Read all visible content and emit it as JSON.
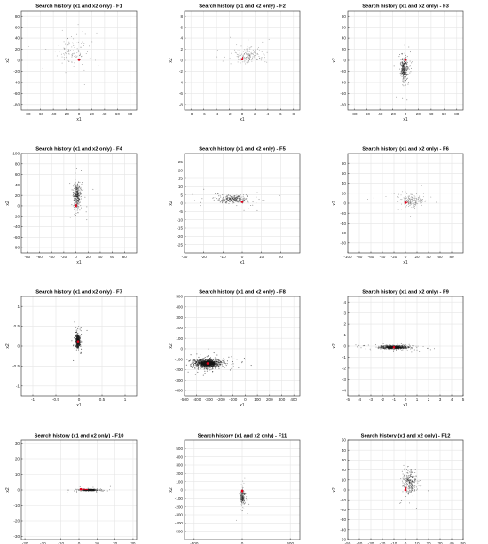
{
  "chart_data": [
    {
      "type": "scatter",
      "title": "Search history (x1 and x2 only) - F1",
      "xlabel": "x1",
      "ylabel": "x2",
      "xlim": [
        -90,
        90
      ],
      "ylim": [
        -90,
        90
      ],
      "xticks": [
        -80,
        -60,
        -40,
        -20,
        0,
        20,
        40,
        60,
        80
      ],
      "yticks": [
        -80,
        -60,
        -40,
        -20,
        0,
        20,
        40,
        60,
        80
      ],
      "grid": true,
      "pattern": "sparse",
      "cluster": {
        "center": [
          -12,
          16
        ],
        "spread": [
          14,
          14
        ],
        "count": 120
      },
      "best": [
        0,
        1
      ],
      "best_trail": [
        [
          -2,
          2
        ],
        [
          0,
          1
        ]
      ]
    },
    {
      "type": "scatter",
      "title": "Search history (x1 and x2 only) - F2",
      "xlabel": "x1",
      "ylabel": "x2",
      "xlim": [
        -9,
        9
      ],
      "ylim": [
        -9,
        9
      ],
      "xticks": [
        -8,
        -6,
        -4,
        -2,
        0,
        2,
        4,
        6,
        8
      ],
      "yticks": [
        -8,
        -6,
        -4,
        -2,
        0,
        2,
        4,
        6,
        8
      ],
      "grid": true,
      "pattern": "sparse",
      "cluster": {
        "center": [
          0.9,
          0.9
        ],
        "spread": [
          1.0,
          0.6
        ],
        "count": 160
      },
      "best": [
        0,
        0.2
      ],
      "best_trail": [
        [
          0.1,
          0.6
        ],
        [
          0,
          0.2
        ]
      ]
    },
    {
      "type": "scatter",
      "title": "Search history (x1 and x2 only) - F3",
      "xlabel": "x1",
      "ylabel": "x2",
      "xlim": [
        -90,
        90
      ],
      "ylim": [
        -90,
        90
      ],
      "xticks": [
        -80,
        -60,
        -40,
        -20,
        0,
        20,
        40,
        60,
        80
      ],
      "yticks": [
        -80,
        -60,
        -40,
        -20,
        0,
        20,
        40,
        60,
        80
      ],
      "grid": true,
      "pattern": "dense",
      "cluster": {
        "center": [
          -2,
          -16
        ],
        "spread": [
          2.5,
          10
        ],
        "count": 320
      },
      "best": [
        0,
        1
      ],
      "best_trail": [
        [
          -1,
          -5
        ],
        [
          0,
          1
        ]
      ]
    },
    {
      "type": "scatter",
      "title": "Search history (x1 and x2 only) - F4",
      "xlabel": "x1",
      "ylabel": "x2",
      "xlim": [
        -90,
        100
      ],
      "ylim": [
        -90,
        100
      ],
      "xticks": [
        -80,
        -60,
        -40,
        -20,
        0,
        20,
        40,
        60,
        80
      ],
      "yticks": [
        -80,
        -60,
        -40,
        -20,
        0,
        20,
        40,
        60,
        80,
        100
      ],
      "grid": true,
      "pattern": "dense",
      "cluster": {
        "center": [
          2,
          20
        ],
        "spread": [
          3,
          12
        ],
        "count": 300
      },
      "best": [
        0,
        0
      ],
      "best_trail": [
        [
          1,
          4
        ],
        [
          0,
          0
        ]
      ]
    },
    {
      "type": "scatter",
      "title": "Search history (x1 and x2 only) - F5",
      "xlabel": "x1",
      "ylabel": "x2",
      "xlim": [
        -30,
        30
      ],
      "ylim": [
        -30,
        30
      ],
      "xticks": [
        -30,
        -20,
        -10,
        0,
        10,
        20
      ],
      "yticks": [
        -25,
        -20,
        -15,
        -10,
        -5,
        0,
        5,
        10,
        15,
        20,
        25
      ],
      "grid": true,
      "pattern": "dense",
      "cluster": {
        "center": [
          -5,
          2.5
        ],
        "spread": [
          4,
          1.2
        ],
        "count": 260
      },
      "best": [
        0,
        0.8
      ],
      "best_trail": [
        [
          -1,
          1.2
        ],
        [
          0,
          0.8
        ]
      ]
    },
    {
      "type": "scatter",
      "title": "Search history (x1 and x2 only) - F6",
      "xlabel": "x1",
      "ylabel": "x2",
      "xlim": [
        -100,
        100
      ],
      "ylim": [
        -100,
        100
      ],
      "xticks": [
        -100,
        -80,
        -60,
        -40,
        -20,
        0,
        20,
        40,
        60,
        80
      ],
      "yticks": [
        -80,
        -60,
        -40,
        -20,
        0,
        20,
        40,
        60,
        80
      ],
      "grid": true,
      "pattern": "sparse",
      "cluster": {
        "center": [
          12,
          6
        ],
        "spread": [
          10,
          6
        ],
        "count": 180
      },
      "best": [
        0,
        1
      ],
      "best_trail": [
        [
          4,
          2
        ],
        [
          0,
          1
        ]
      ]
    },
    {
      "type": "scatter",
      "title": "Search history (x1 and x2 only) - F7",
      "xlabel": "x1",
      "ylabel": "x2",
      "xlim": [
        -1.25,
        1.25
      ],
      "ylim": [
        -1.25,
        1.25
      ],
      "xticks": [
        -1,
        -0.5,
        0,
        0.5,
        1
      ],
      "yticks": [
        -1,
        -0.5,
        0,
        0.5,
        1
      ],
      "grid": true,
      "pattern": "blob",
      "cluster": {
        "center": [
          -0.02,
          0.12
        ],
        "spread": [
          0.02,
          0.07
        ],
        "count": 500
      },
      "best": [
        -0.02,
        0.12
      ],
      "best_trail": [
        [
          -0.02,
          0.12
        ]
      ]
    },
    {
      "type": "scatter",
      "title": "Search history (x1 and x2 only) - F8",
      "xlabel": "x1",
      "ylabel": "x2",
      "xlim": [
        -500,
        450
      ],
      "ylim": [
        -450,
        500
      ],
      "xticks": [
        -500,
        -400,
        -300,
        -200,
        -100,
        0,
        100,
        200,
        300,
        400
      ],
      "yticks": [
        -400,
        -300,
        -200,
        -100,
        0,
        100,
        200,
        300,
        400,
        500
      ],
      "grid": true,
      "pattern": "blob",
      "cluster": {
        "center": [
          -310,
          -140
        ],
        "spread": [
          55,
          20
        ],
        "count": 900
      },
      "best": [
        -310,
        -140
      ],
      "best_trail": [
        [
          -310,
          -140
        ]
      ]
    },
    {
      "type": "scatter",
      "title": "Search history (x1 and x2 only) - F9",
      "xlabel": "x1",
      "ylabel": "x2",
      "xlim": [
        -5,
        5
      ],
      "ylim": [
        -4.5,
        4.5
      ],
      "xticks": [
        -5,
        -4,
        -3,
        -2,
        -1,
        0,
        1,
        2,
        3,
        4,
        5
      ],
      "yticks": [
        -4,
        -3,
        -2,
        -1,
        0,
        1,
        2,
        3,
        4
      ],
      "grid": true,
      "pattern": "band",
      "cluster": {
        "center": [
          -1,
          -0.1
        ],
        "spread": [
          0.6,
          0.07
        ],
        "count": 700
      },
      "best": [
        -1,
        -0.1
      ],
      "best_trail": [
        [
          -1,
          -0.1
        ]
      ]
    },
    {
      "type": "scatter",
      "title": "Search history (x1 and x2 only) - F10",
      "xlabel": "x1",
      "ylabel": "x2",
      "xlim": [
        -32,
        32
      ],
      "ylim": [
        -32,
        32
      ],
      "xticks": [
        -30,
        -20,
        -10,
        0,
        10,
        20,
        30
      ],
      "yticks": [
        -30,
        -20,
        -10,
        0,
        10,
        20,
        30
      ],
      "grid": true,
      "pattern": "band",
      "cluster": {
        "center": [
          6,
          0
        ],
        "spread": [
          3,
          0.3
        ],
        "count": 220
      },
      "best": [
        1,
        0.5
      ],
      "best_trail": [
        [
          5,
          0.3
        ],
        [
          1,
          0.5
        ]
      ]
    },
    {
      "type": "scatter",
      "title": "Search history (x1 and x2 only) - F11",
      "xlabel": "x1",
      "ylabel": "x2",
      "xlim": [
        -600,
        600
      ],
      "ylim": [
        -600,
        600
      ],
      "xticks": [
        -500,
        0,
        500
      ],
      "yticks": [
        -500,
        -400,
        -300,
        -200,
        -100,
        0,
        100,
        200,
        300,
        400,
        500
      ],
      "grid": true,
      "pattern": "sparse",
      "cluster": {
        "center": [
          5,
          -90
        ],
        "spread": [
          12,
          45
        ],
        "count": 220
      },
      "best": [
        0,
        -10
      ],
      "best_trail": [
        [
          2,
          -40
        ],
        [
          0,
          -10
        ]
      ]
    },
    {
      "type": "scatter",
      "title": "Search history (x1 and x2 only) - F12",
      "xlabel": "x1",
      "ylabel": "x2",
      "xlim": [
        -50,
        50
      ],
      "ylim": [
        -50,
        50
      ],
      "xticks": [
        -50,
        -40,
        -30,
        -20,
        -10,
        0,
        10,
        20,
        30,
        40,
        50
      ],
      "yticks": [
        -50,
        -40,
        -30,
        -20,
        -10,
        0,
        10,
        20,
        30,
        40,
        50
      ],
      "grid": true,
      "pattern": "dense",
      "cluster": {
        "center": [
          4,
          8
        ],
        "spread": [
          3,
          6
        ],
        "count": 240
      },
      "best": [
        0,
        0
      ],
      "best_trail": [
        [
          1,
          3
        ],
        [
          0,
          0
        ]
      ]
    }
  ],
  "colors": {
    "points": "#222222",
    "best": "#e0001a",
    "grid": "#e5e5e5",
    "axes": "#262626",
    "background": "#ffffff"
  }
}
